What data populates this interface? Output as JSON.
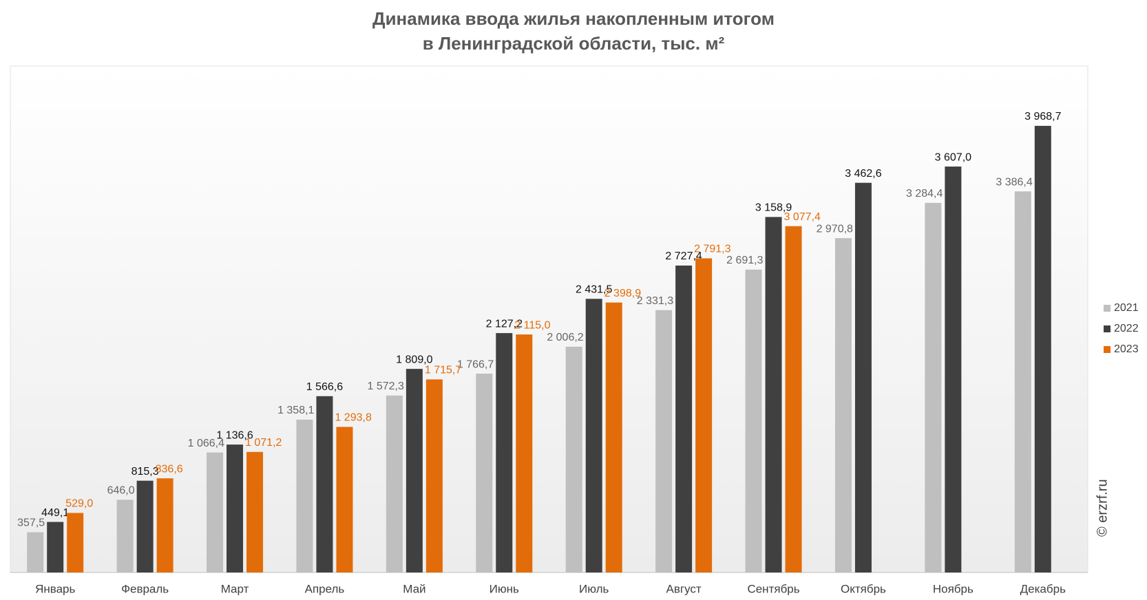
{
  "chart_data": {
    "type": "bar",
    "title": "Динамика ввода жилья накопленным итогом",
    "subtitle": "в Ленинградской области, тыс. м²",
    "watermark": "© erzrf.ru",
    "categories": [
      "Январь",
      "Февраль",
      "Март",
      "Апрель",
      "Май",
      "Июнь",
      "Июль",
      "Август",
      "Сентябрь",
      "Октябрь",
      "Ноябрь",
      "Декабрь"
    ],
    "series": [
      {
        "name": "2021",
        "color": "#bfbfbf",
        "values": [
          357.5,
          646.0,
          1066.4,
          1358.1,
          1572.3,
          1766.7,
          2006.2,
          2331.3,
          2691.3,
          2970.8,
          3284.4,
          3386.4
        ],
        "value_labels": [
          "357,5",
          "646,0",
          "1 066,4",
          "1 358,1",
          "1 572,3",
          "1 766,7",
          "2 006,2",
          "2 331,3",
          "2 691,3",
          "2 970,8",
          "3 284,4",
          "3 386,4"
        ]
      },
      {
        "name": "2022",
        "color": "#404040",
        "values": [
          449.1,
          815.3,
          1136.6,
          1566.6,
          1809.0,
          2127.2,
          2431.5,
          2727.4,
          3158.9,
          3462.6,
          3607.0,
          3968.7
        ],
        "value_labels": [
          "449,1",
          "815,3",
          "1 136,6",
          "1 566,6",
          "1 809,0",
          "2 127,2",
          "2 431,5",
          "2 727,4",
          "3 158,9",
          "3 462,6",
          "3 607,0",
          "3 968,7"
        ]
      },
      {
        "name": "2023",
        "color": "#e36c0a",
        "values": [
          529.0,
          836.6,
          1071.2,
          1293.8,
          1715.7,
          2115.0,
          2398.9,
          2791.3,
          3077.4,
          null,
          null,
          null
        ],
        "value_labels": [
          "529,0",
          "836,6",
          "1 071,2",
          "1 293,8",
          "1 715,7",
          "2 115,0",
          "2 398,9",
          "2 791,3",
          "3 077,4",
          null,
          null,
          null
        ]
      }
    ],
    "ylim": [
      0,
      4500
    ],
    "grid": false,
    "legend": "right"
  }
}
